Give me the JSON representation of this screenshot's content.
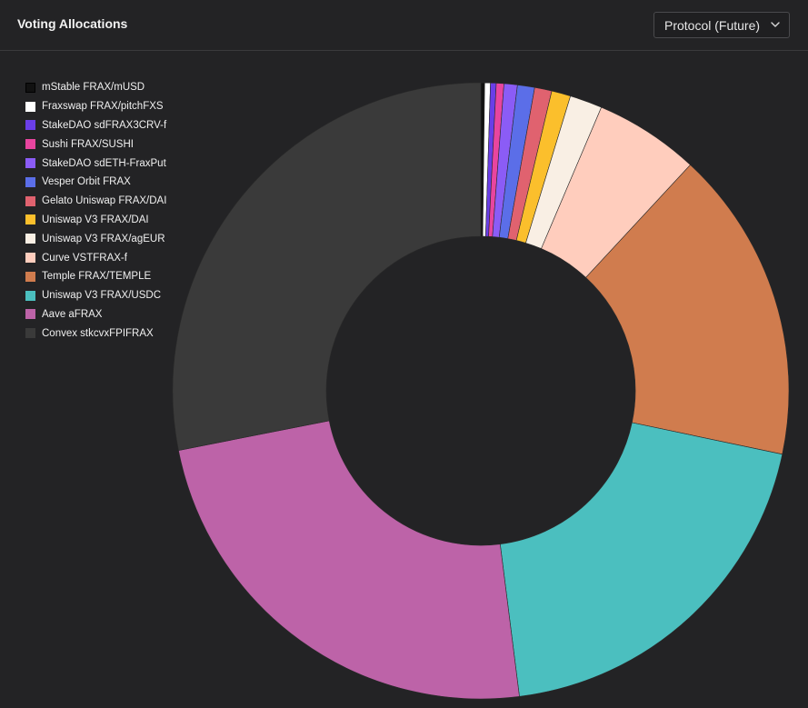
{
  "header": {
    "title": "Voting Allocations",
    "dropdown_label": "Protocol (Future)",
    "dropdown_icon": "chevron-down-icon"
  },
  "chart_data": {
    "type": "pie",
    "variant": "donut",
    "legend_position": "left",
    "series": [
      {
        "name": "mStable FRAX/mUSD",
        "value": 0.2,
        "color": "#111111"
      },
      {
        "name": "Fraxswap FRAX/pitchFXS",
        "value": 0.3,
        "color": "#ffffff"
      },
      {
        "name": "StakeDAO sdFRAX3CRV-f",
        "value": 0.3,
        "color": "#6a3ee8"
      },
      {
        "name": "Sushi FRAX/SUSHI",
        "value": 0.4,
        "color": "#e8459f"
      },
      {
        "name": "StakeDAO sdETH-FraxPut",
        "value": 0.7,
        "color": "#8b5cf6"
      },
      {
        "name": "Vesper Orbit FRAX",
        "value": 0.9,
        "color": "#5b6ee8"
      },
      {
        "name": "Gelato Uniswap FRAX/DAI",
        "value": 0.9,
        "color": "#e0626f"
      },
      {
        "name": "Uniswap V3 FRAX/DAI",
        "value": 1.0,
        "color": "#fbbf2c"
      },
      {
        "name": "Uniswap V3 FRAX/agEUR",
        "value": 1.7,
        "color": "#f9efe4"
      },
      {
        "name": "Curve VSTFRAX-f",
        "value": 5.5,
        "color": "#ffcdbd"
      },
      {
        "name": "Temple FRAX/TEMPLE",
        "value": 16.4,
        "color": "#d07c4e"
      },
      {
        "name": "Uniswap V3 FRAX/USDC",
        "value": 19.7,
        "color": "#4bbfbf"
      },
      {
        "name": "Aave aFRAX",
        "value": 23.9,
        "color": "#bd63a8"
      },
      {
        "name": "Convex stkcvxFPIFRAX",
        "value": 28.1,
        "color": "#3a3a3a"
      }
    ]
  }
}
